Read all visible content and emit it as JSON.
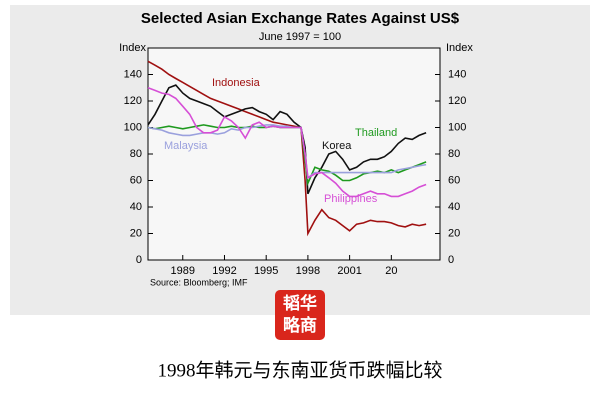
{
  "chart_data": {
    "type": "line",
    "title": "Selected Asian Exchange Rates Against US$",
    "subtitle": "June 1997 = 100",
    "y_label": "Index",
    "y2_label": "Index",
    "source": "Source: Bloomberg; IMF",
    "x": [
      1986.5,
      1987,
      1987.5,
      1988,
      1988.5,
      1989,
      1989.5,
      1990,
      1990.5,
      1991,
      1991.5,
      1992,
      1992.5,
      1993,
      1993.5,
      1994,
      1994.5,
      1995,
      1995.5,
      1996,
      1996.5,
      1997,
      1997.5,
      1997.8,
      1998,
      1998.5,
      1999,
      1999.5,
      2000,
      2000.5,
      2001,
      2001.5,
      2002,
      2002.5,
      2003,
      2003.5,
      2004,
      2004.5,
      2005,
      2005.5,
      2006,
      2006.5
    ],
    "xlim": [
      1986.5,
      2007.5
    ],
    "xticks": [
      1989,
      1992,
      1995,
      1998,
      2001,
      {
        "value": 2004,
        "label": "20"
      }
    ],
    "ylim": [
      0,
      160
    ],
    "yticks": [
      0,
      20,
      40,
      60,
      80,
      100,
      120,
      140
    ],
    "y2lim": [
      0,
      160
    ],
    "y2ticks": [
      0,
      20,
      40,
      60,
      80,
      100,
      120,
      140
    ],
    "series": [
      {
        "name": "Indonesia",
        "color": "#a01010",
        "values": [
          150,
          147,
          144,
          140,
          137,
          134,
          131,
          128,
          125,
          122,
          120,
          118,
          116,
          114,
          112,
          110,
          108,
          106,
          104,
          103,
          102,
          101,
          100,
          60,
          20,
          30,
          38,
          32,
          30,
          26,
          22,
          27,
          28,
          30,
          29,
          29,
          28,
          26,
          25,
          27,
          26,
          27
        ]
      },
      {
        "name": "Korea",
        "color": "#111111",
        "values": [
          102,
          110,
          120,
          130,
          132,
          126,
          122,
          120,
          118,
          116,
          112,
          108,
          110,
          112,
          114,
          115,
          112,
          110,
          106,
          112,
          110,
          104,
          100,
          85,
          50,
          62,
          70,
          80,
          82,
          76,
          68,
          70,
          74,
          76,
          76,
          78,
          82,
          88,
          92,
          91,
          94,
          96
        ]
      },
      {
        "name": "Thailand",
        "color": "#1f9a1f",
        "values": [
          100,
          99,
          100,
          101,
          100,
          99,
          100,
          101,
          102,
          101,
          100,
          100,
          101,
          100,
          100,
          101,
          100,
          100,
          101,
          100,
          100,
          100,
          100,
          75,
          58,
          70,
          68,
          67,
          64,
          60,
          60,
          62,
          65,
          66,
          67,
          66,
          68,
          66,
          68,
          70,
          72,
          74
        ]
      },
      {
        "name": "Malaysia",
        "color": "#9aa0dd",
        "values": [
          100,
          99,
          98,
          96,
          95,
          94,
          94,
          95,
          96,
          96,
          95,
          96,
          99,
          98,
          100,
          100,
          101,
          102,
          102,
          101,
          101,
          100,
          100,
          80,
          62,
          66,
          66,
          66,
          66,
          66,
          66,
          66,
          66,
          66,
          66,
          66,
          66,
          68,
          69,
          70,
          71,
          72
        ]
      },
      {
        "name": "Philippines",
        "color": "#d64fd6",
        "values": [
          130,
          128,
          126,
          125,
          122,
          116,
          110,
          100,
          96,
          96,
          98,
          108,
          105,
          100,
          92,
          102,
          104,
          100,
          101,
          100,
          100,
          100,
          100,
          80,
          62,
          65,
          66,
          62,
          58,
          52,
          48,
          48,
          50,
          52,
          50,
          50,
          48,
          48,
          50,
          52,
          55,
          57
        ]
      }
    ]
  },
  "logo": [
    "韬华",
    "略商"
  ],
  "caption": "1998年韩元与东南亚货币跌幅比较"
}
